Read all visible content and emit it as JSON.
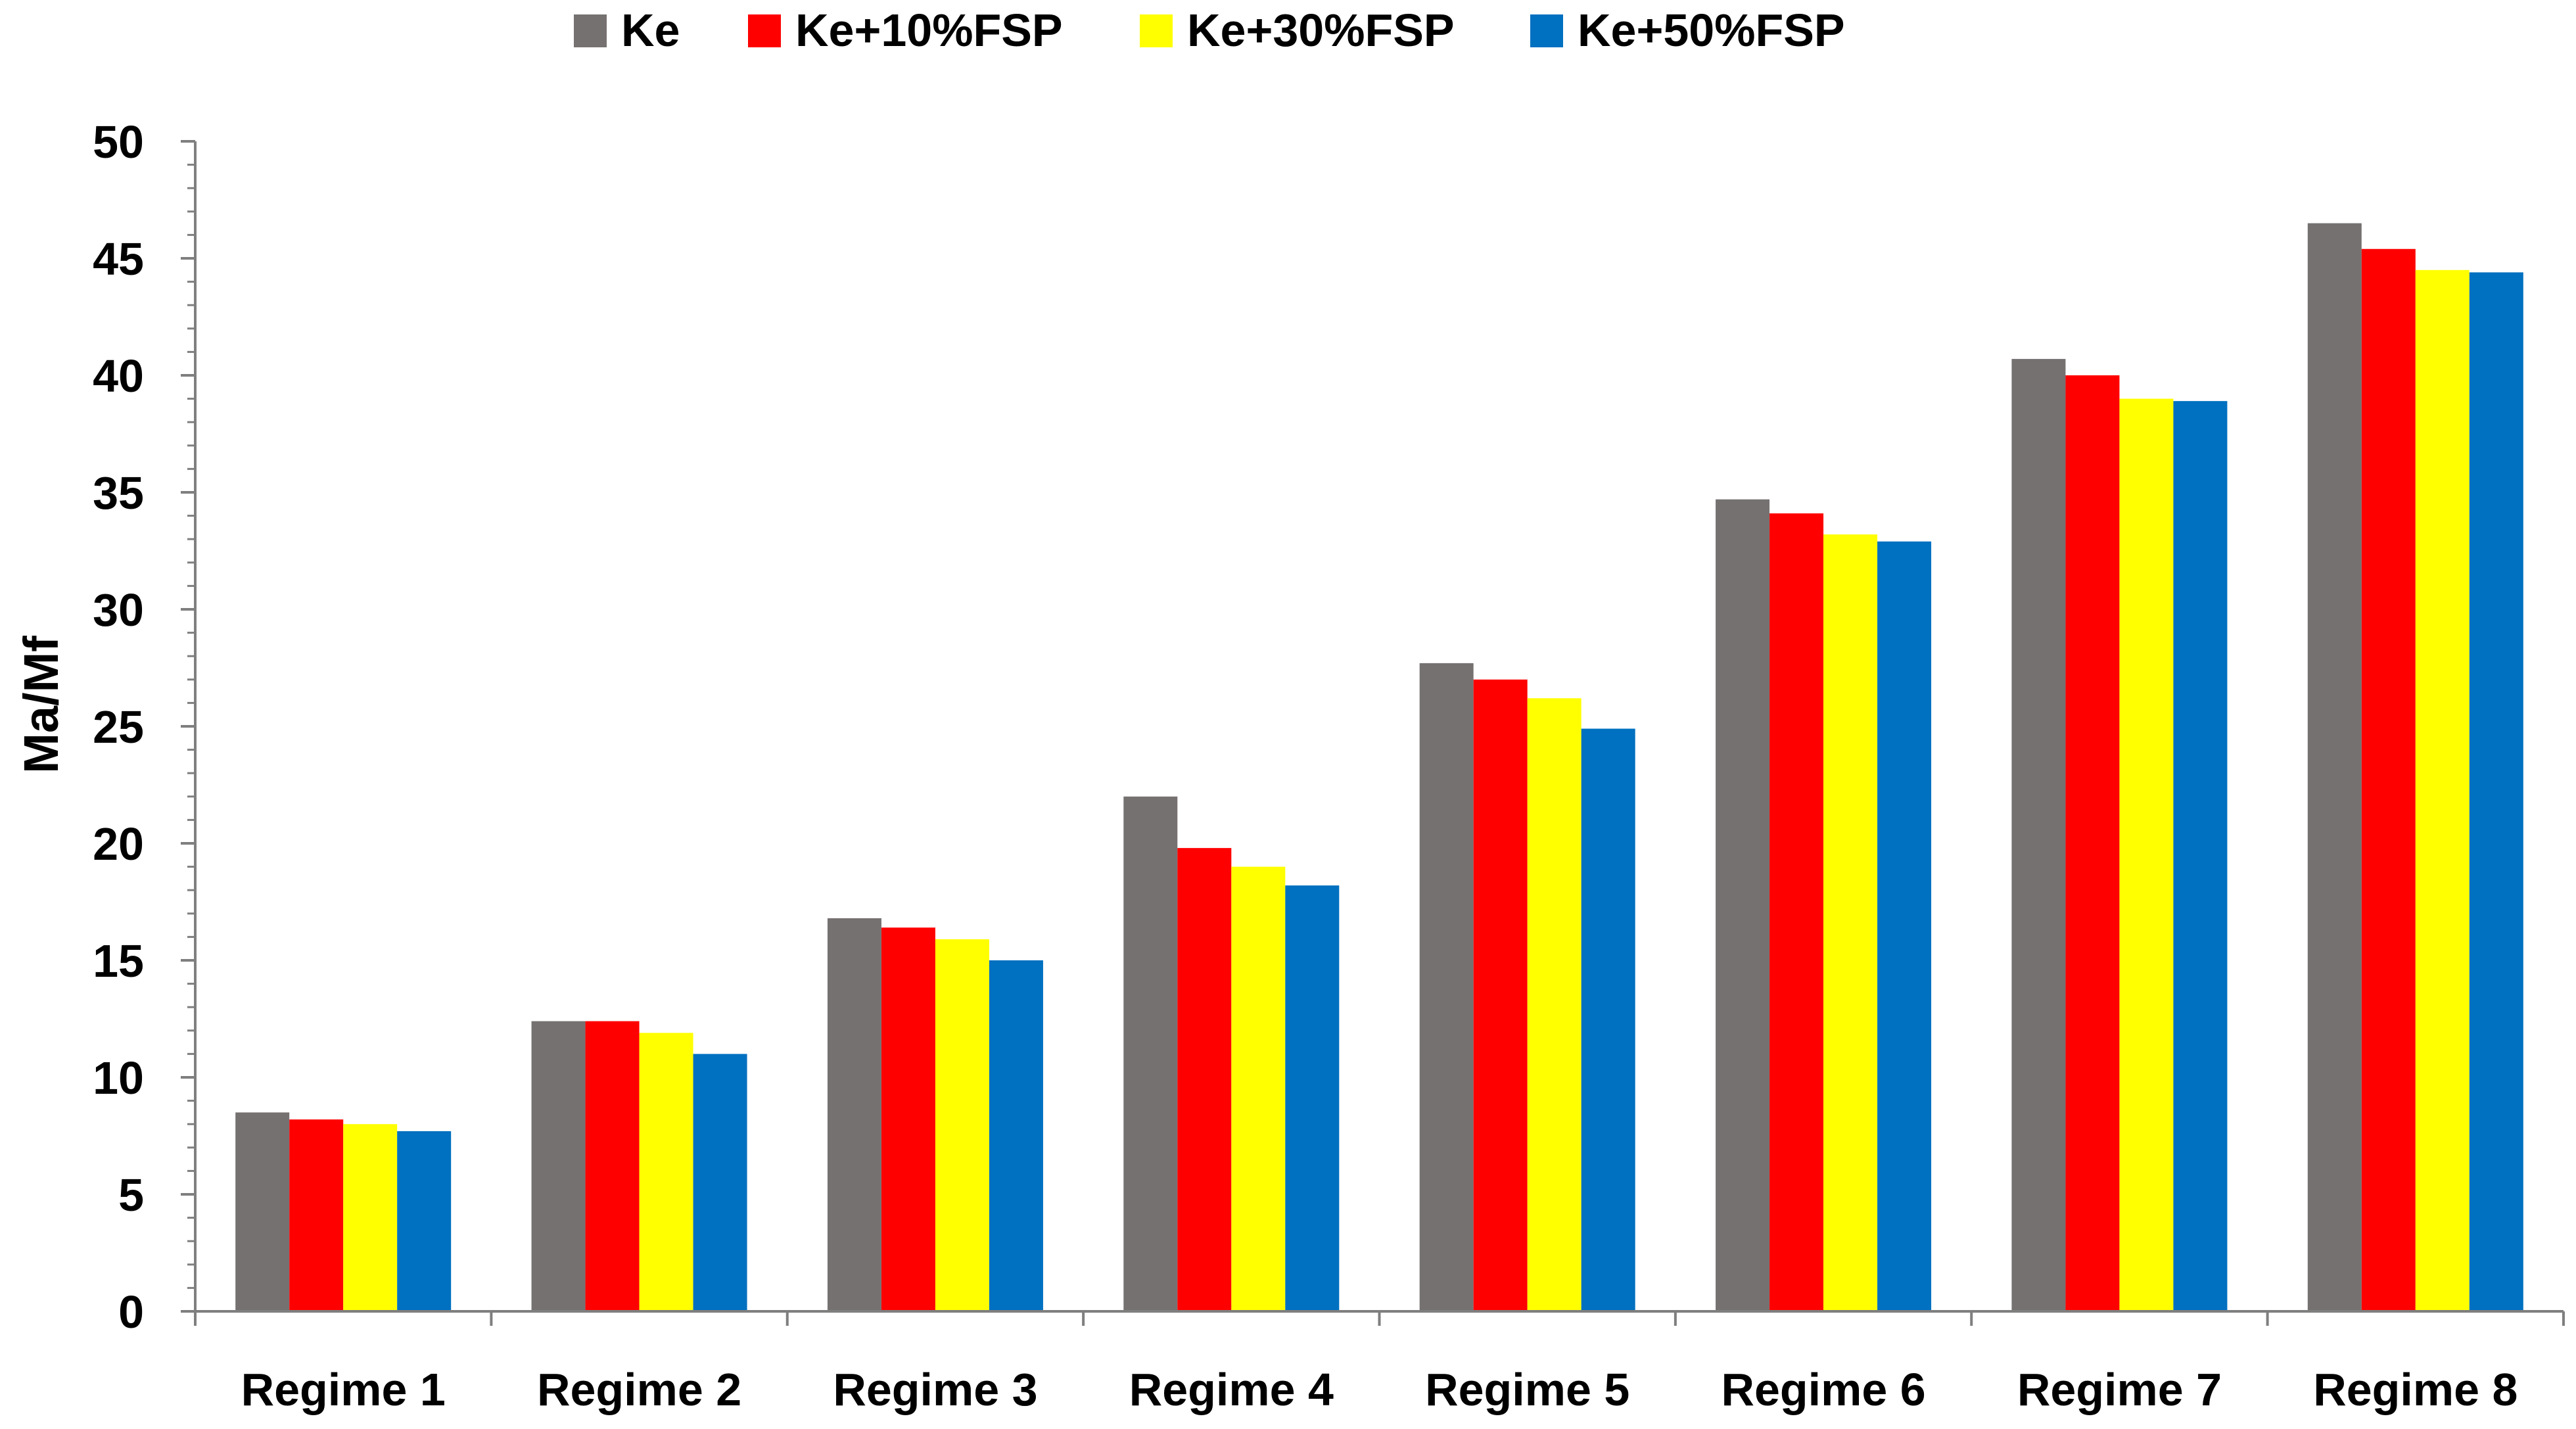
{
  "chart_data": {
    "type": "bar",
    "title": "",
    "xlabel": "",
    "ylabel": "Ma/Mf",
    "ylim": [
      0,
      50
    ],
    "yticks": [
      "0",
      "5",
      "10",
      "15",
      "20",
      "25",
      "30",
      "35",
      "40",
      "45",
      "50"
    ],
    "grid": false,
    "legend_position": "top",
    "categories": [
      "Regime 1",
      "Regime 2",
      "Regime 3",
      "Regime 4",
      "Regime 5",
      "Regime 6",
      "Regime 7",
      "Regime 8"
    ],
    "series": [
      {
        "name": "Ke",
        "color": "#767171",
        "values": [
          8.5,
          12.4,
          16.8,
          22.0,
          27.7,
          34.7,
          40.7,
          46.5
        ]
      },
      {
        "name": "Ke+10%FSP",
        "color": "#ff0000",
        "values": [
          8.2,
          12.4,
          16.4,
          19.8,
          27.0,
          34.1,
          40.0,
          45.4
        ]
      },
      {
        "name": "Ke+30%FSP",
        "color": "#ffff00",
        "values": [
          8.0,
          11.9,
          15.9,
          19.0,
          26.2,
          33.2,
          39.0,
          44.5
        ]
      },
      {
        "name": "Ke+50%FSP",
        "color": "#0070c0",
        "values": [
          7.7,
          11.0,
          15.0,
          18.2,
          24.9,
          32.9,
          38.9,
          44.4
        ]
      }
    ]
  }
}
